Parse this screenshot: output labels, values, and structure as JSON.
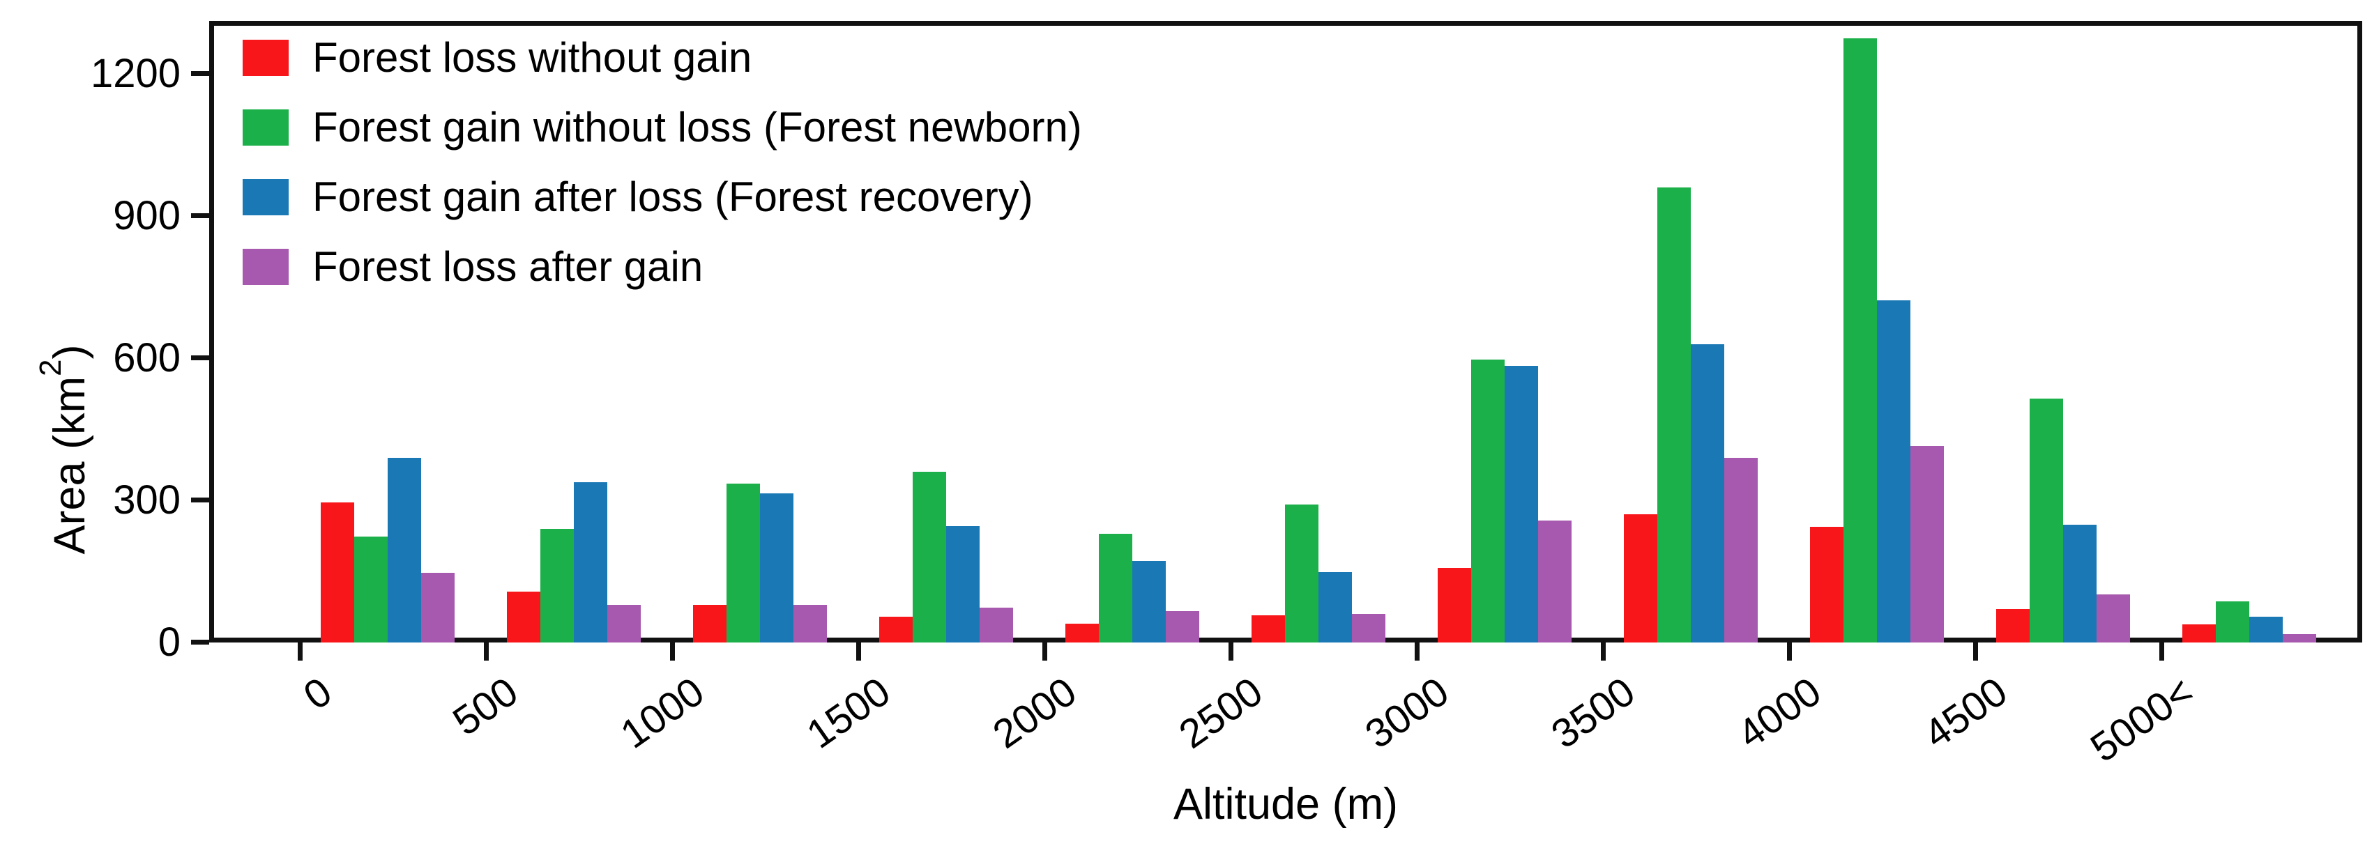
{
  "chart_data": {
    "type": "bar",
    "title": "",
    "xlabel": "Altitude (m)",
    "ylabel": "Area (km2)",
    "ylabel_parts": {
      "main": "Area (km",
      "sup": "2",
      "end": ")"
    },
    "categories": [
      "0",
      "500",
      "1000",
      "1500",
      "2000",
      "2500",
      "3000",
      "3500",
      "4000",
      "4500",
      "5000<"
    ],
    "series": [
      {
        "name": "Forest loss without gain",
        "color": "#f8161b",
        "values": [
          295,
          108,
          79,
          55,
          40,
          58,
          158,
          271,
          244,
          71,
          38
        ]
      },
      {
        "name": "Forest gain without loss (Forest newborn)",
        "color": "#1cb04a",
        "values": [
          223,
          239,
          335,
          360,
          230,
          291,
          597,
          960,
          1275,
          515,
          87
        ]
      },
      {
        "name": "Forest gain after loss (Forest recovery)",
        "color": "#1a79b5",
        "values": [
          390,
          338,
          314,
          245,
          172,
          148,
          584,
          630,
          722,
          249,
          55
        ]
      },
      {
        "name": "Forest loss after gain",
        "color": "#a659ae",
        "values": [
          147,
          79,
          79,
          74,
          66,
          61,
          258,
          390,
          415,
          101,
          18
        ]
      }
    ],
    "y_ticks": [
      0,
      300,
      600,
      900,
      1200
    ],
    "ylim": [
      0,
      1312
    ],
    "grid": false,
    "legend_position": "top-left-inside",
    "x_tick_rotation_deg": -35,
    "axis_color": "#111111",
    "background_color": "#ffffff"
  }
}
